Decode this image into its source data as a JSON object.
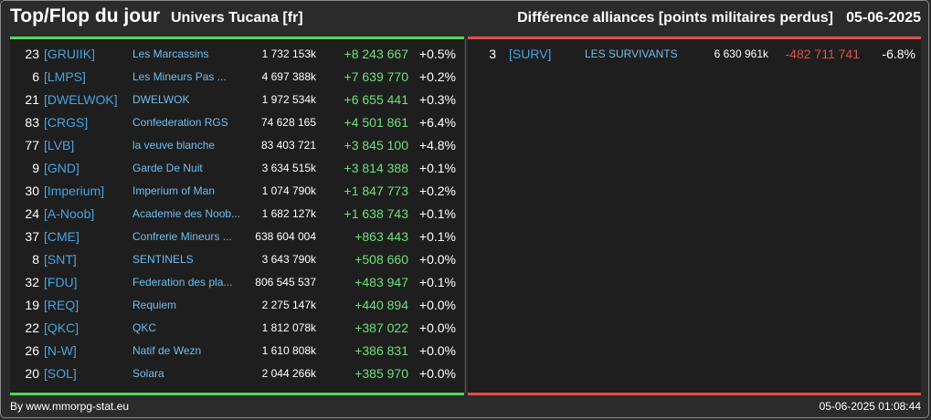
{
  "header": {
    "title": "Top/Flop du jour",
    "universe": "Univers Tucana [fr]",
    "subtitle": "Différence alliances [points militaires perdus]",
    "date": "05-06-2025"
  },
  "colors": {
    "top_accent": "#55d65a",
    "flop_accent": "#e0504a",
    "tag": "#4aa3e0",
    "gain": "#6fe07a",
    "loss": "#e0504a"
  },
  "top": [
    {
      "rank": "23",
      "tag": "[GRUIIK]",
      "name": "Les Marcassins",
      "points": "1 732 153k",
      "diff": "+8 243 667",
      "pct": "+0.5%"
    },
    {
      "rank": "6",
      "tag": "[LMPS]",
      "name": "Les Mineurs Pas ...",
      "points": "4 697 388k",
      "diff": "+7 639 770",
      "pct": "+0.2%"
    },
    {
      "rank": "21",
      "tag": "[DWELWOK]",
      "name": "DWELWOK",
      "points": "1 972 534k",
      "diff": "+6 655 441",
      "pct": "+0.3%"
    },
    {
      "rank": "83",
      "tag": "[CRGS]",
      "name": "Confederation RGS",
      "points": "74 628 165",
      "diff": "+4 501 861",
      "pct": "+6.4%"
    },
    {
      "rank": "77",
      "tag": "[LVB]",
      "name": "la veuve blanche",
      "points": "83 403 721",
      "diff": "+3 845 100",
      "pct": "+4.8%"
    },
    {
      "rank": "9",
      "tag": "[GND]",
      "name": "Garde De Nuit",
      "points": "3 634 515k",
      "diff": "+3 814 388",
      "pct": "+0.1%"
    },
    {
      "rank": "30",
      "tag": "[Imperium]",
      "name": "Imperium of Man",
      "points": "1 074 790k",
      "diff": "+1 847 773",
      "pct": "+0.2%"
    },
    {
      "rank": "24",
      "tag": "[A-Noob]",
      "name": "Academie des Noob...",
      "points": "1 682 127k",
      "diff": "+1 638 743",
      "pct": "+0.1%"
    },
    {
      "rank": "37",
      "tag": "[CME]",
      "name": "Confrerie Mineurs ...",
      "points": "638 604 004",
      "diff": "+863 443",
      "pct": "+0.1%"
    },
    {
      "rank": "8",
      "tag": "[SNT]",
      "name": "SENTINELS",
      "points": "3 643 790k",
      "diff": "+508 660",
      "pct": "+0.0%"
    },
    {
      "rank": "32",
      "tag": "[FDU]",
      "name": "Federation des pla...",
      "points": "806 545 537",
      "diff": "+483 947",
      "pct": "+0.1%"
    },
    {
      "rank": "19",
      "tag": "[REQ]",
      "name": "Requiem",
      "points": "2 275 147k",
      "diff": "+440 894",
      "pct": "+0.0%"
    },
    {
      "rank": "22",
      "tag": "[QKC]",
      "name": "QKC",
      "points": "1 812 078k",
      "diff": "+387 022",
      "pct": "+0.0%"
    },
    {
      "rank": "26",
      "tag": "[N-W]",
      "name": "Natif de Wezn",
      "points": "1 610 808k",
      "diff": "+386 831",
      "pct": "+0.0%"
    },
    {
      "rank": "20",
      "tag": "[SOL]",
      "name": "Solara",
      "points": "2 044 266k",
      "diff": "+385 970",
      "pct": "+0.0%"
    }
  ],
  "flop": [
    {
      "rank": "3",
      "tag": "[SURV]",
      "name": "LES SURVIVANTS",
      "points": "6 630 961k",
      "diff": "-482 711 741",
      "pct": "-6.8%"
    }
  ],
  "footer": {
    "source": "By www.mmorpg-stat.eu",
    "timestamp": "05-06-2025 01:08:44"
  }
}
